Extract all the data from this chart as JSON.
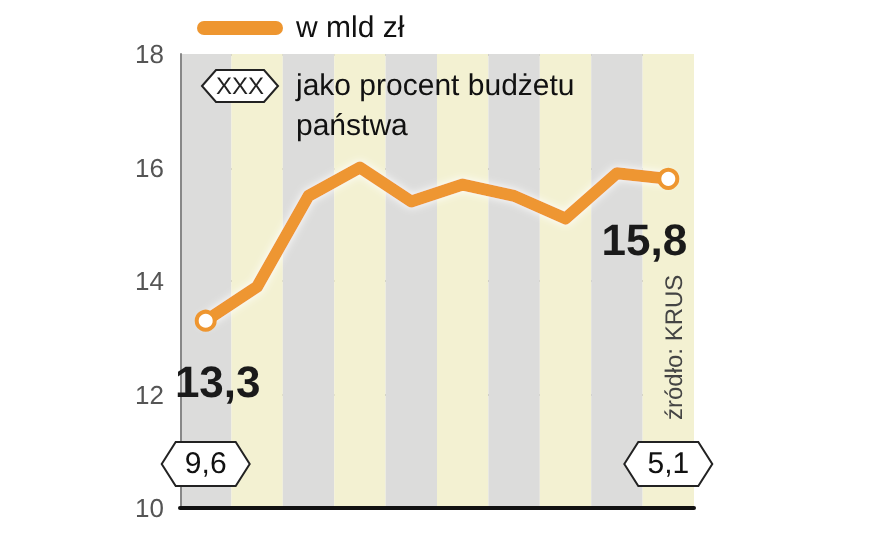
{
  "chart_data": {
    "type": "line",
    "categories": [
      null,
      null,
      null,
      null,
      null,
      null,
      null,
      null,
      null,
      null
    ],
    "series": [
      {
        "name": "w mld zł",
        "color": "#ee9630",
        "values": [
          13.3,
          13.9,
          15.5,
          16.0,
          15.4,
          15.7,
          15.5,
          15.1,
          15.9,
          15.8
        ],
        "value_labels": [
          "13,3",
          null,
          null,
          null,
          null,
          null,
          null,
          null,
          null,
          "15,8"
        ]
      }
    ],
    "annotations": [
      "XXX",
      "jako procent budżetu państwa",
      "9,6",
      "5,1",
      "źródło: KRUS"
    ],
    "ylim": [
      10,
      18
    ],
    "yticks": [
      10,
      12,
      14,
      16,
      18
    ],
    "grid": "y",
    "legend": "top left",
    "line_style": "solid"
  }
}
